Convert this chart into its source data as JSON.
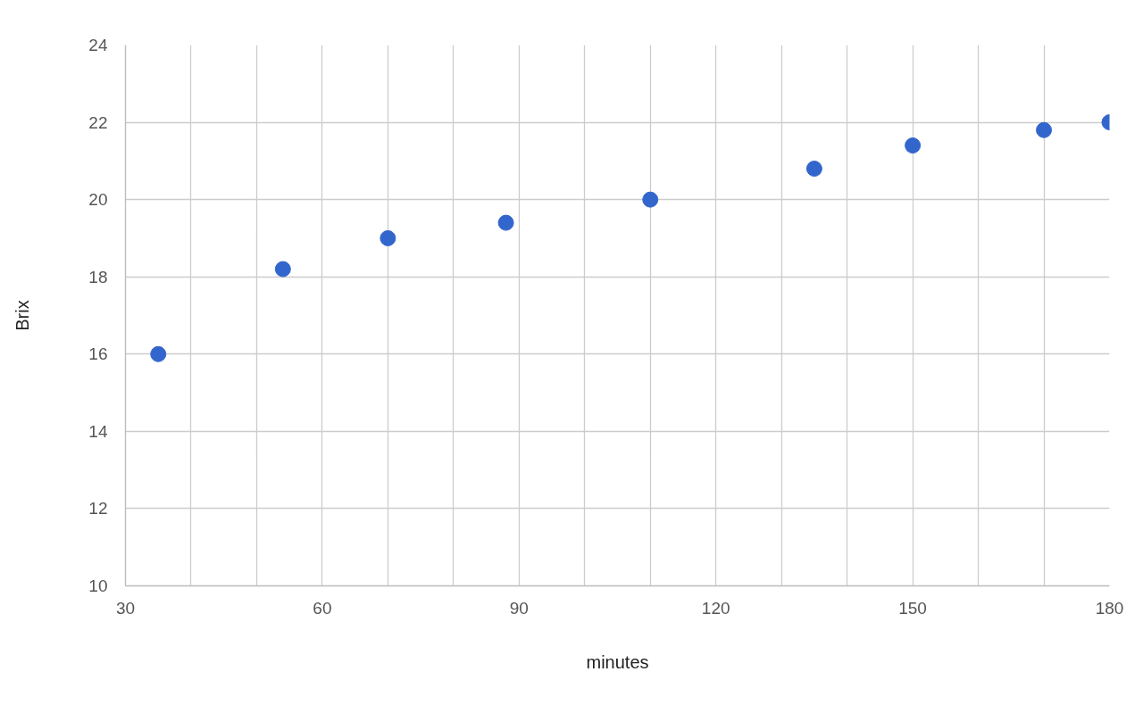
{
  "chart_data": {
    "type": "scatter",
    "xlabel": "minutes",
    "ylabel": "Brix",
    "x": [
      35,
      54,
      70,
      88,
      110,
      135,
      150,
      170,
      180
    ],
    "series": [
      {
        "color": "#3366cc",
        "values": [
          16,
          18.2,
          19,
          19.4,
          20,
          20.8,
          21.4,
          21.8,
          22
        ]
      }
    ],
    "xlim": [
      30,
      180
    ],
    "xticks": [
      30,
      {
        "value": 40,
        "label": null
      },
      {
        "value": 50,
        "label": null
      },
      60,
      {
        "value": 70,
        "label": null
      },
      {
        "value": 80,
        "label": null
      },
      90,
      {
        "value": 100,
        "label": null
      },
      {
        "value": 110,
        "label": null
      },
      120,
      {
        "value": 130,
        "label": null
      },
      {
        "value": 140,
        "label": null
      },
      150,
      {
        "value": 160,
        "label": null
      },
      {
        "value": 170,
        "label": null
      },
      180
    ],
    "ylim": [
      10,
      24
    ],
    "yticks": [
      10,
      12,
      14,
      16,
      18,
      20,
      22,
      24
    ],
    "grid": true,
    "marker": "circle"
  }
}
